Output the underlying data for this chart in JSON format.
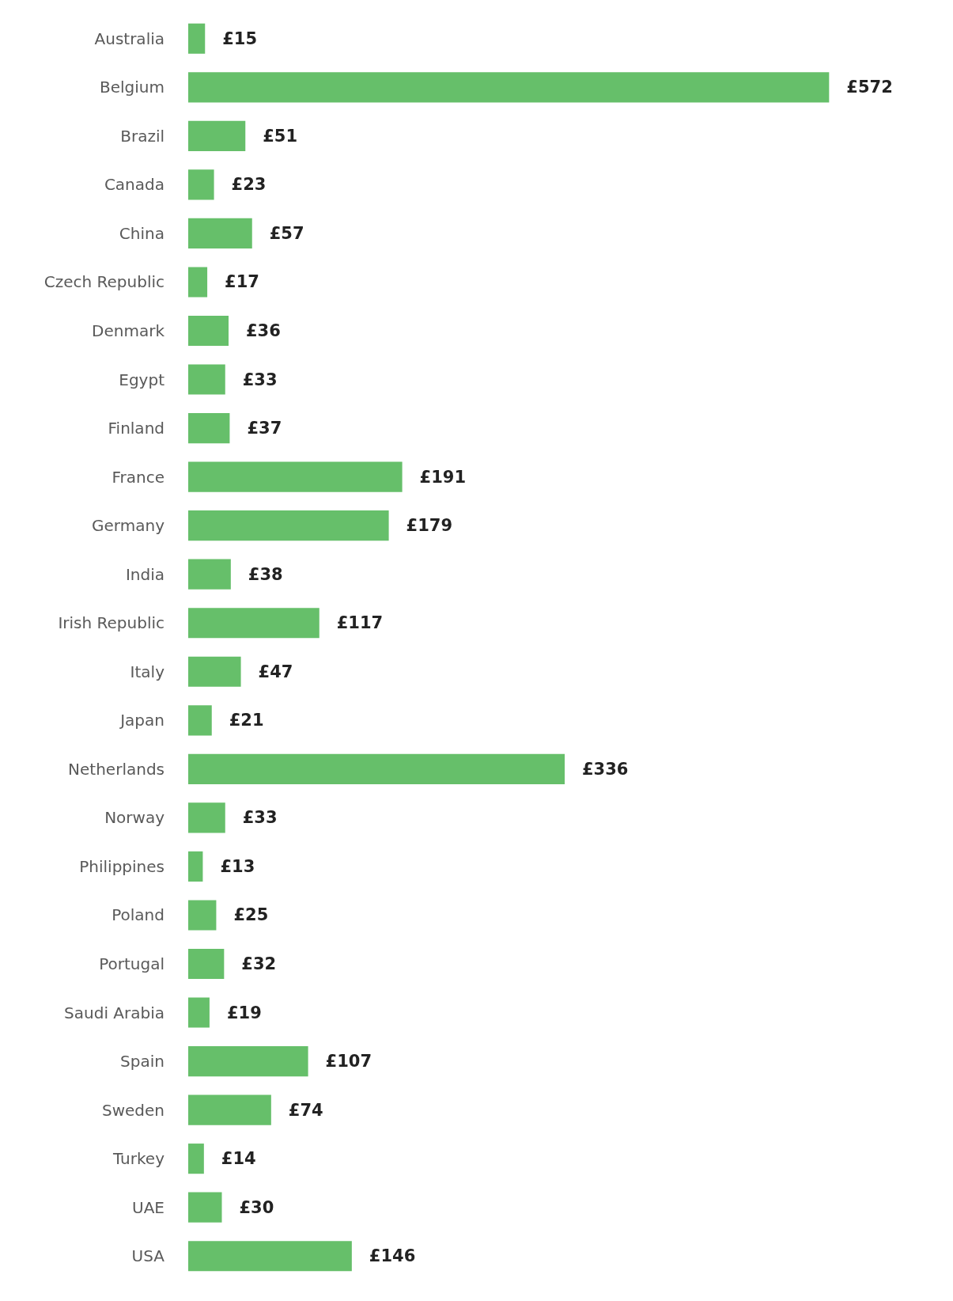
{
  "chart_data": {
    "type": "bar",
    "orientation": "horizontal",
    "color": "#66bf6a",
    "tick_labels": "y",
    "categories": [
      "Australia",
      "Belgium",
      "Brazil",
      "Canada",
      "China",
      "Czech Republic",
      "Denmark",
      "Egypt",
      "Finland",
      "France",
      "Germany",
      "India",
      "Irish Republic",
      "Italy",
      "Japan",
      "Netherlands",
      "Norway",
      "Philippines",
      "Poland",
      "Portugal",
      "Saudi Arabia",
      "Spain",
      "Sweden",
      "Turkey",
      "UAE",
      "USA"
    ],
    "values": [
      15,
      572,
      51,
      23,
      57,
      17,
      36,
      33,
      37,
      191,
      179,
      38,
      117,
      47,
      21,
      336,
      33,
      13,
      25,
      32,
      19,
      107,
      74,
      14,
      30,
      146
    ],
    "value_labels": [
      "£15",
      "£572",
      "£51",
      "£23",
      "£57",
      "£17",
      "£36",
      "£33",
      "£37",
      "£191",
      "£179",
      "£38",
      "£117",
      "£47",
      "£21",
      "£336",
      "£33",
      "£13",
      "£25",
      "£32",
      "£19",
      "£107",
      "£74",
      "£14",
      "£30",
      "£146"
    ]
  }
}
